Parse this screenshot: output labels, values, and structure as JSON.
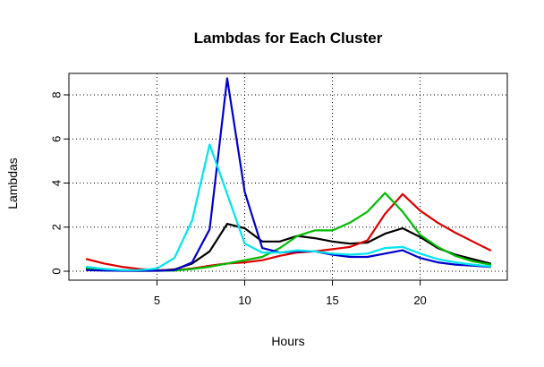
{
  "chart_data": {
    "type": "line",
    "title": "Lambdas for Each Cluster",
    "xlabel": "Hours",
    "ylabel": "Lambdas",
    "x": [
      1,
      2,
      3,
      4,
      5,
      6,
      7,
      8,
      9,
      10,
      11,
      12,
      13,
      14,
      15,
      16,
      17,
      18,
      19,
      20,
      21,
      22,
      23,
      24
    ],
    "xlim": [
      1,
      24
    ],
    "ylim": [
      0,
      8.8
    ],
    "xticks": [
      5,
      10,
      15,
      20
    ],
    "yticks": [
      0,
      2,
      4,
      6,
      8
    ],
    "grid": true,
    "grid_style": "dotted",
    "series": [
      {
        "color": "#000000",
        "values": [
          0.1,
          0.05,
          0.03,
          0.02,
          0.03,
          0.08,
          0.35,
          0.9,
          2.15,
          1.95,
          1.35,
          1.35,
          1.6,
          1.5,
          1.35,
          1.25,
          1.3,
          1.7,
          1.95,
          1.55,
          1.05,
          0.75,
          0.55,
          0.35
        ]
      },
      {
        "color": "#dd0000",
        "values": [
          0.55,
          0.35,
          0.2,
          0.1,
          0.05,
          0.05,
          0.12,
          0.25,
          0.35,
          0.4,
          0.5,
          0.7,
          0.85,
          0.9,
          1.0,
          1.1,
          1.4,
          2.6,
          3.5,
          2.75,
          2.2,
          1.75,
          1.35,
          0.95
        ]
      },
      {
        "color": "#00bb00",
        "values": [
          0.15,
          0.1,
          0.05,
          0.02,
          0.02,
          0.03,
          0.1,
          0.2,
          0.35,
          0.5,
          0.65,
          1.05,
          1.6,
          1.85,
          1.85,
          2.2,
          2.7,
          3.55,
          2.7,
          1.65,
          1.1,
          0.7,
          0.45,
          0.3
        ]
      },
      {
        "color": "#0000cc",
        "values": [
          0.05,
          0.03,
          0.02,
          0.02,
          0.02,
          0.05,
          0.4,
          1.9,
          8.75,
          3.6,
          1.05,
          0.85,
          0.9,
          0.9,
          0.75,
          0.65,
          0.65,
          0.8,
          0.95,
          0.6,
          0.4,
          0.3,
          0.25,
          0.2
        ]
      },
      {
        "color": "#00e5ee",
        "values": [
          0.2,
          0.1,
          0.05,
          0.05,
          0.12,
          0.6,
          2.3,
          5.75,
          3.5,
          1.25,
          0.85,
          0.85,
          0.95,
          0.9,
          0.8,
          0.75,
          0.8,
          1.05,
          1.1,
          0.8,
          0.55,
          0.4,
          0.3,
          0.22
        ]
      }
    ]
  }
}
